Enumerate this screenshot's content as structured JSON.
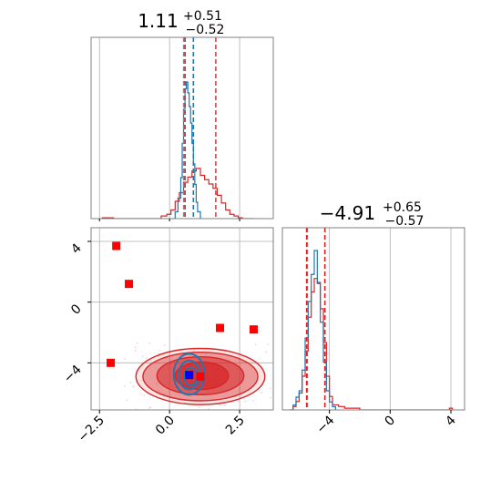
{
  "chart_data": {
    "type": "corner",
    "colors": {
      "red": "#d62728",
      "blue": "#1f77b4",
      "marker_red": "#ff0000",
      "marker_blue": "#0000ff",
      "grid": "#b0b0b0",
      "frame": "#808080"
    },
    "grid": true,
    "parameters": [
      {
        "title_main": "1.11",
        "title_sup": "+0.51",
        "title_sub": "−0.52",
        "range": [
          -2.8,
          3.7
        ]
      },
      {
        "title_main": "−4.91",
        "title_sup": "+0.65",
        "title_sub": "−0.57",
        "range": [
          -7.1,
          4.9
        ]
      }
    ],
    "x_ticks": [
      {
        "value": -2.5,
        "label": "−2.5"
      },
      {
        "value": 0.0,
        "label": "0.0"
      },
      {
        "value": 2.5,
        "label": "2.5"
      }
    ],
    "y_ticks": [
      {
        "value": 4,
        "label": "4"
      },
      {
        "value": 0,
        "label": "0"
      },
      {
        "value": -4,
        "label": "−4"
      }
    ],
    "x2_ticks": [
      {
        "value": -4,
        "label": "−4"
      },
      {
        "value": 0,
        "label": "0"
      },
      {
        "value": 4,
        "label": "4"
      }
    ],
    "hist1": {
      "quantiles_red": [
        0.55,
        1.65
      ],
      "quantiles_blue": [
        0.55,
        0.85
      ],
      "quantile_grey": 0.5,
      "red_bins": [
        [
          -2.4,
          0.01
        ],
        [
          -2.0,
          0.0
        ],
        [
          -1.5,
          0.0
        ],
        [
          -1.0,
          0.0
        ],
        [
          -0.5,
          0.0
        ],
        [
          -0.3,
          0.03
        ],
        [
          -0.1,
          0.05
        ],
        [
          0.05,
          0.1
        ],
        [
          0.2,
          0.2
        ],
        [
          0.35,
          0.3
        ],
        [
          0.5,
          0.42
        ],
        [
          0.65,
          0.48
        ],
        [
          0.8,
          0.55
        ],
        [
          0.95,
          0.58
        ],
        [
          1.1,
          0.5
        ],
        [
          1.25,
          0.45
        ],
        [
          1.4,
          0.4
        ],
        [
          1.55,
          0.35
        ],
        [
          1.7,
          0.27
        ],
        [
          1.85,
          0.18
        ],
        [
          2.0,
          0.1
        ],
        [
          2.15,
          0.05
        ],
        [
          2.3,
          0.03
        ],
        [
          2.45,
          0.01
        ],
        [
          2.6,
          0.0
        ],
        [
          3.0,
          0.0
        ]
      ],
      "blue_bins": [
        [
          0.1,
          0.0
        ],
        [
          0.2,
          0.05
        ],
        [
          0.3,
          0.15
        ],
        [
          0.4,
          0.3
        ],
        [
          0.45,
          0.55
        ],
        [
          0.5,
          0.8
        ],
        [
          0.55,
          0.95
        ],
        [
          0.6,
          1.0
        ],
        [
          0.65,
          0.92
        ],
        [
          0.7,
          0.82
        ],
        [
          0.75,
          0.7
        ],
        [
          0.8,
          0.55
        ],
        [
          0.85,
          0.4
        ],
        [
          0.9,
          0.25
        ],
        [
          0.95,
          0.12
        ],
        [
          1.0,
          0.05
        ],
        [
          1.1,
          0.0
        ]
      ]
    },
    "hist2": {
      "quantiles_red": [
        -5.5,
        -4.3
      ],
      "quantiles_blue": [
        -5.5,
        -4.3
      ],
      "quantile_grey": -5.45,
      "red_bins": [
        [
          -6.6,
          0.0
        ],
        [
          -6.4,
          0.02
        ],
        [
          -6.2,
          0.05
        ],
        [
          -6.0,
          0.1
        ],
        [
          -5.8,
          0.2
        ],
        [
          -5.6,
          0.35
        ],
        [
          -5.4,
          0.55
        ],
        [
          -5.2,
          0.7
        ],
        [
          -5.0,
          0.78
        ],
        [
          -4.8,
          0.75
        ],
        [
          -4.6,
          0.6
        ],
        [
          -4.4,
          0.4
        ],
        [
          -4.2,
          0.2
        ],
        [
          -4.0,
          0.08
        ],
        [
          -3.8,
          0.03
        ],
        [
          -3.4,
          0.02
        ],
        [
          -3.0,
          0.01
        ],
        [
          -2.5,
          0.01
        ],
        [
          -2.0,
          0.0
        ],
        [
          3.7,
          0.0
        ],
        [
          3.9,
          0.01
        ],
        [
          4.1,
          0.0
        ]
      ],
      "blue_bins": [
        [
          -6.6,
          0.0
        ],
        [
          -6.4,
          0.03
        ],
        [
          -6.2,
          0.08
        ],
        [
          -6.0,
          0.12
        ],
        [
          -5.8,
          0.25
        ],
        [
          -5.6,
          0.45
        ],
        [
          -5.4,
          0.68
        ],
        [
          -5.2,
          0.85
        ],
        [
          -5.0,
          1.0
        ],
        [
          -4.8,
          0.8
        ],
        [
          -4.6,
          0.55
        ],
        [
          -4.4,
          0.3
        ],
        [
          -4.2,
          0.12
        ],
        [
          -4.0,
          0.05
        ],
        [
          -3.8,
          0.02
        ],
        [
          -3.6,
          0.0
        ]
      ]
    },
    "scatter_red_markers": [
      {
        "x": -1.9,
        "y": 3.7
      },
      {
        "x": -1.45,
        "y": 1.2
      },
      {
        "x": 1.8,
        "y": -1.7
      },
      {
        "x": 3.0,
        "y": -1.8
      },
      {
        "x": -2.1,
        "y": -4.0
      },
      {
        "x": 1.1,
        "y": -4.9
      }
    ],
    "scatter_blue_markers": [
      {
        "x": 0.7,
        "y": -4.8
      }
    ],
    "contours_red": [
      {
        "cx": 1.1,
        "cy": -4.9,
        "rx": 2.3,
        "ry": 1.85,
        "opacity": 0.12
      },
      {
        "cx": 1.1,
        "cy": -4.9,
        "rx": 2.05,
        "ry": 1.6,
        "opacity": 0.4
      },
      {
        "cx": 1.1,
        "cy": -4.85,
        "rx": 1.55,
        "ry": 1.25,
        "opacity": 0.55
      },
      {
        "cx": 1.15,
        "cy": -4.85,
        "rx": 0.95,
        "ry": 0.9,
        "opacity": 0.75
      }
    ],
    "contours_blue": [
      {
        "cx": 0.7,
        "cy": -4.75,
        "rx": 0.55,
        "ry": 1.35
      },
      {
        "cx": 0.7,
        "cy": -4.8,
        "rx": 0.38,
        "ry": 0.95
      },
      {
        "cx": 0.75,
        "cy": -4.9,
        "rx": 0.22,
        "ry": 0.6
      }
    ]
  }
}
